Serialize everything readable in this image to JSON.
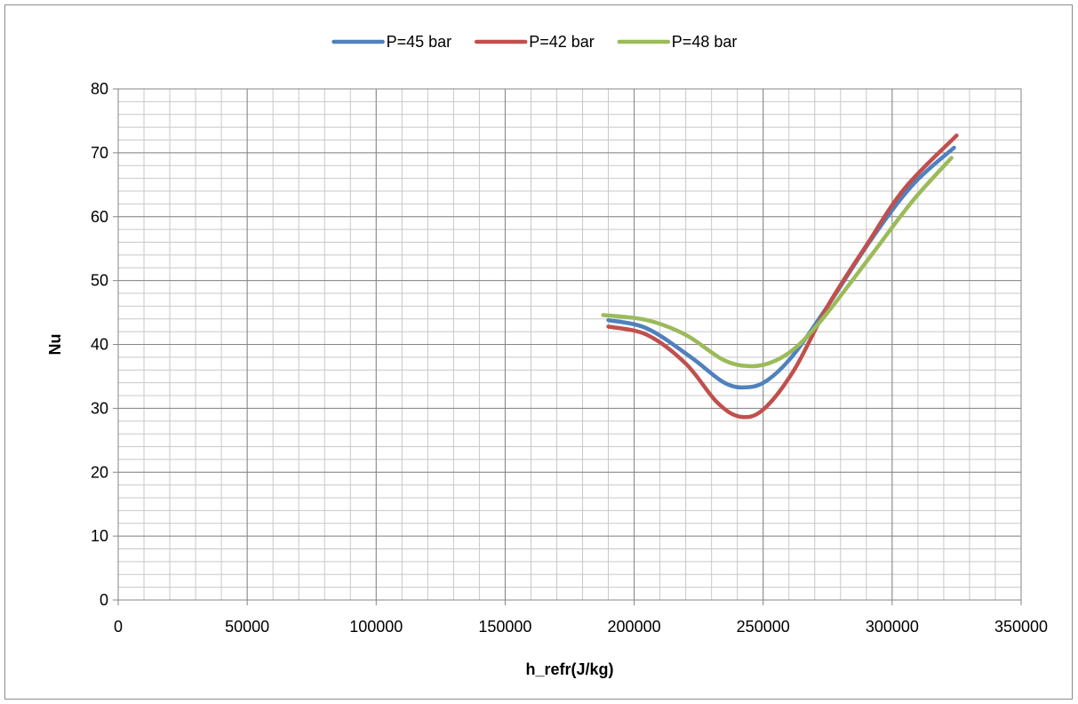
{
  "chart_data": {
    "type": "line",
    "title": "",
    "xlabel": "h_refr(J/kg)",
    "ylabel": "Nu",
    "xlim": [
      0,
      350000
    ],
    "ylim": [
      0,
      80
    ],
    "x_ticks": [
      0,
      50000,
      100000,
      150000,
      200000,
      250000,
      300000,
      350000
    ],
    "y_ticks": [
      0,
      10,
      20,
      30,
      40,
      50,
      60,
      70,
      80
    ],
    "grid": true,
    "legend_position": "top",
    "smooth": true,
    "series": [
      {
        "name": "P=45 bar",
        "color": "#4f81bd",
        "points": [
          [
            190000,
            43.8
          ],
          [
            205000,
            42.5
          ],
          [
            222000,
            38.0
          ],
          [
            235000,
            34.0
          ],
          [
            244000,
            33.3
          ],
          [
            252000,
            34.5
          ],
          [
            262000,
            38.5
          ],
          [
            275000,
            46.0
          ],
          [
            292000,
            56.5
          ],
          [
            308000,
            65.0
          ],
          [
            324000,
            70.8
          ]
        ]
      },
      {
        "name": "P=42 bar",
        "color": "#c0504d",
        "points": [
          [
            190000,
            42.8
          ],
          [
            205000,
            41.5
          ],
          [
            220000,
            37.0
          ],
          [
            232000,
            31.0
          ],
          [
            241000,
            28.7
          ],
          [
            250000,
            29.8
          ],
          [
            262000,
            36.0
          ],
          [
            275000,
            46.0
          ],
          [
            290000,
            55.5
          ],
          [
            305000,
            64.5
          ],
          [
            325000,
            72.7
          ]
        ]
      },
      {
        "name": "P=48 bar",
        "color": "#9bbb59",
        "points": [
          [
            188000,
            44.6
          ],
          [
            205000,
            43.8
          ],
          [
            220000,
            41.5
          ],
          [
            235000,
            37.5
          ],
          [
            246000,
            36.6
          ],
          [
            255000,
            37.5
          ],
          [
            264000,
            40.0
          ],
          [
            275000,
            45.0
          ],
          [
            292000,
            54.0
          ],
          [
            308000,
            62.5
          ],
          [
            323000,
            69.2
          ]
        ]
      }
    ]
  }
}
